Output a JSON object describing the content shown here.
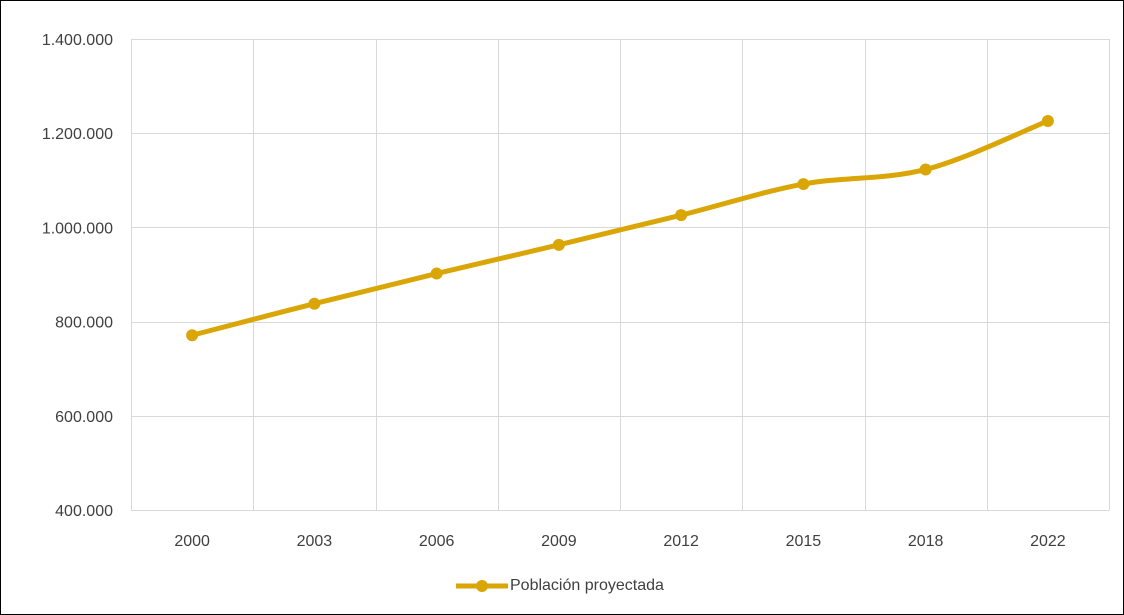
{
  "chart_data": {
    "type": "line",
    "title": "",
    "xlabel": "",
    "ylabel": "",
    "categories": [
      "2000",
      "2003",
      "2006",
      "2009",
      "2012",
      "2015",
      "2018",
      "2022"
    ],
    "series": [
      {
        "name": "Población proyectada",
        "values": [
          771000,
          838000,
          902000,
          963000,
          1026000,
          1092000,
          1123000,
          1226000
        ],
        "color": "#D9A606",
        "smooth": true,
        "markers": true
      }
    ],
    "ylim": [
      400000,
      1400000
    ],
    "yticks": [
      400000,
      600000,
      800000,
      1000000,
      1200000,
      1400000
    ],
    "ytick_labels": [
      "400.000",
      "600.000",
      "800.000",
      "1.000.000",
      "1.200.000",
      "1.400.000"
    ],
    "grid": "both",
    "legend": "bottom"
  },
  "legend": {
    "label": "Población proyectada"
  }
}
